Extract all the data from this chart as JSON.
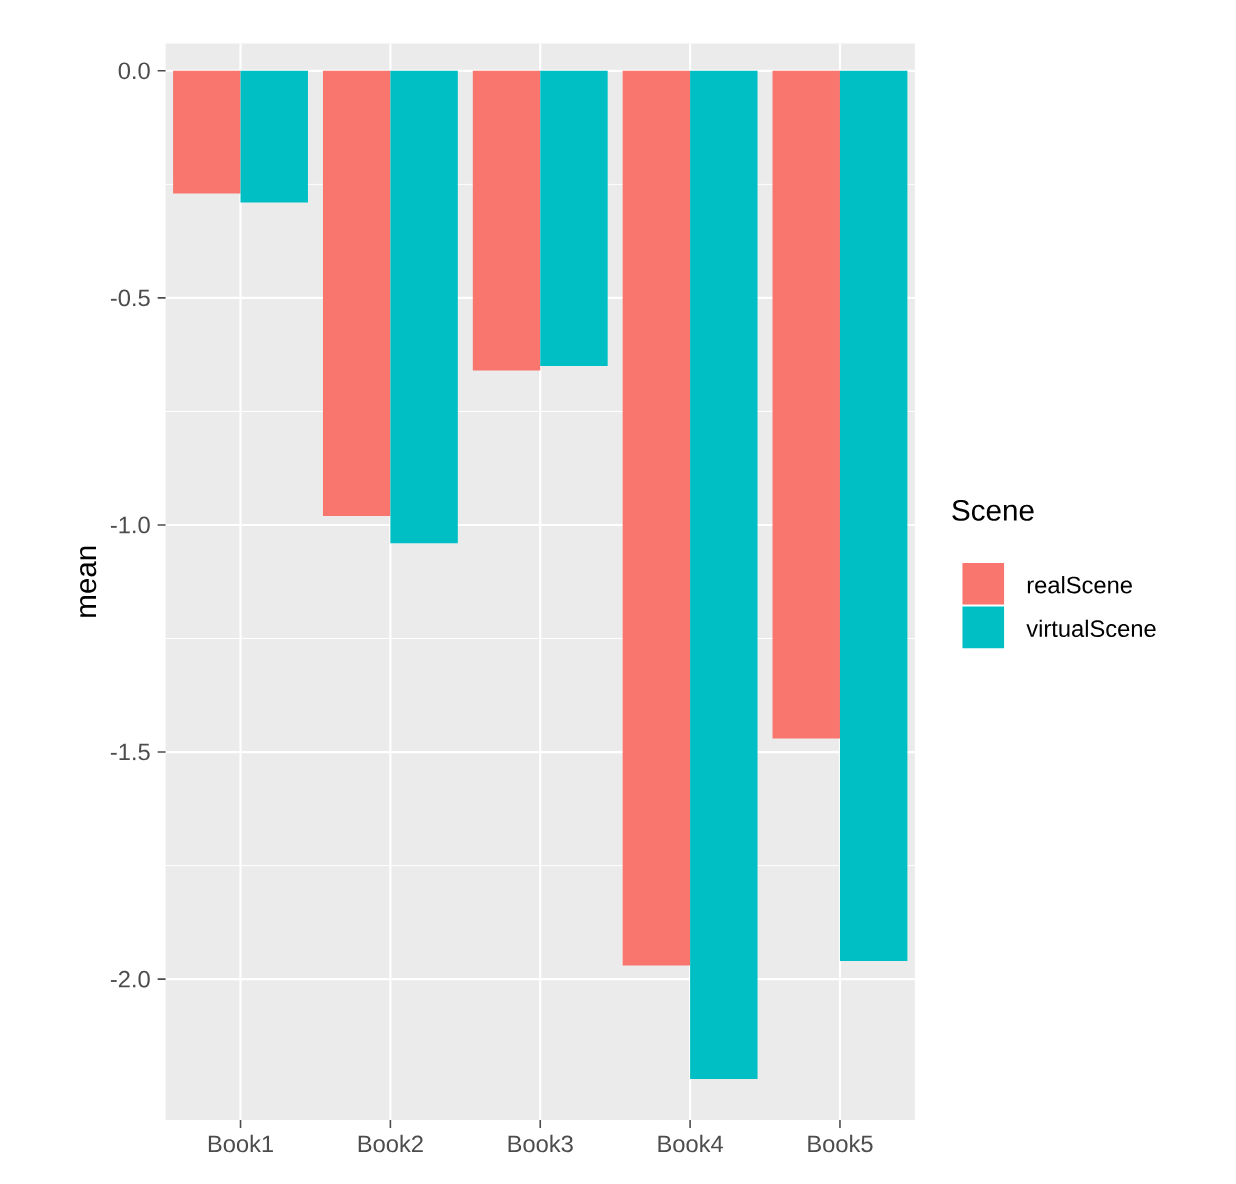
{
  "chart_data": {
    "type": "bar",
    "ylabel": "mean",
    "legend_title": "Scene",
    "categories": [
      "Book1",
      "Book2",
      "Book3",
      "Book4",
      "Book5"
    ],
    "series": [
      {
        "name": "realScene",
        "color": "#f8766d",
        "values": [
          -0.27,
          -0.98,
          -0.66,
          -1.97,
          -1.47
        ]
      },
      {
        "name": "virtualScene",
        "color": "#00bfc4",
        "values": [
          -0.29,
          -1.04,
          -0.65,
          -2.22,
          -1.96
        ]
      }
    ],
    "ylim": [
      -2.31,
      0.06
    ],
    "yticks": [
      {
        "value": 0,
        "label": "0.0"
      },
      {
        "value": -0.5,
        "label": "-0.5"
      },
      {
        "value": -1,
        "label": "-1.0"
      },
      {
        "value": -1.5,
        "label": "-1.5"
      },
      {
        "value": -2,
        "label": "-2.0"
      }
    ],
    "grid": true,
    "legend": "right"
  }
}
